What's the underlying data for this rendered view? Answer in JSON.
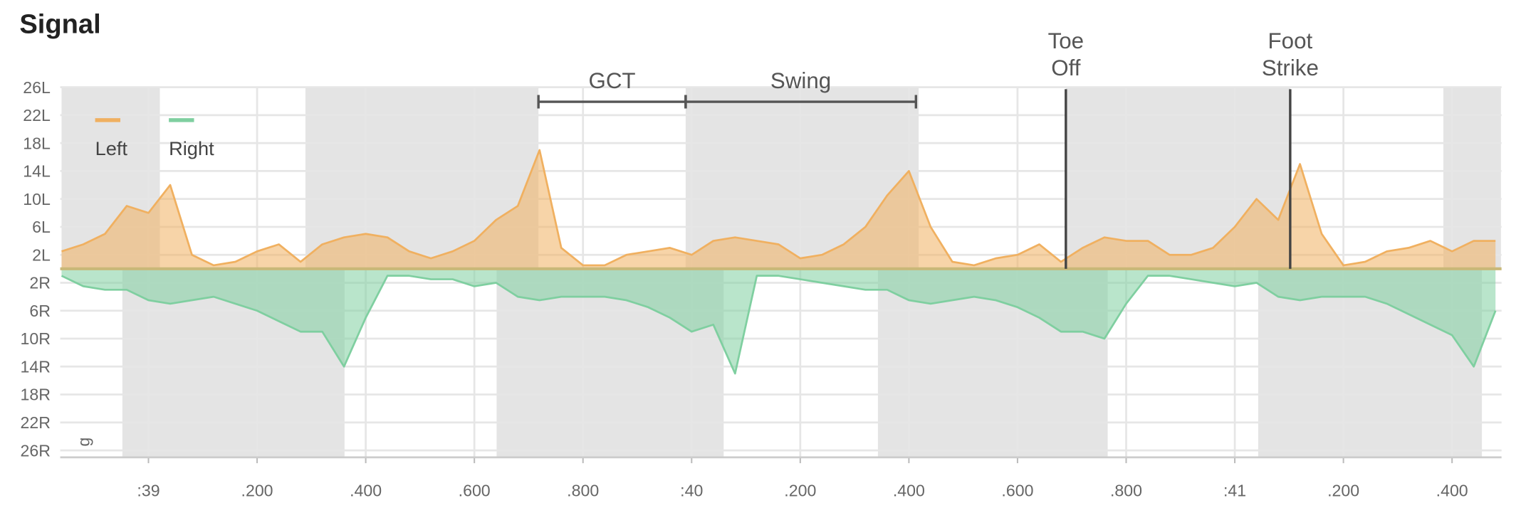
{
  "chart_data": {
    "type": "area",
    "title": "Signal",
    "corner_label": "g",
    "x": [
      38.84,
      38.88,
      38.92,
      38.96,
      39.0,
      39.04,
      39.08,
      39.12,
      39.16,
      39.2,
      39.24,
      39.28,
      39.32,
      39.36,
      39.4,
      39.44,
      39.48,
      39.52,
      39.56,
      39.6,
      39.64,
      39.68,
      39.72,
      39.76,
      39.8,
      39.84,
      39.88,
      39.92,
      39.96,
      40.0,
      40.04,
      40.08,
      40.12,
      40.16,
      40.2,
      40.24,
      40.28,
      40.32,
      40.36,
      40.4,
      40.44,
      40.48,
      40.52,
      40.56,
      40.6,
      40.64,
      40.68,
      40.72,
      40.76,
      40.8,
      40.84,
      40.88,
      40.92,
      40.96,
      41.0,
      41.04,
      41.08,
      41.12,
      41.16,
      41.2,
      41.24,
      41.28,
      41.32,
      41.36,
      41.4,
      41.44,
      41.48
    ],
    "series": [
      {
        "name": "Left",
        "color": "#f0b060",
        "values": [
          2.5,
          3.5,
          5,
          9,
          8,
          12,
          2,
          0.5,
          1,
          2.5,
          3.5,
          1,
          3.5,
          4.5,
          5,
          4.5,
          2.5,
          1.5,
          2.5,
          4,
          7,
          9,
          17,
          3,
          0.5,
          0.5,
          2,
          2.5,
          3,
          2,
          4,
          4.5,
          4,
          3.5,
          1.5,
          2,
          3.5,
          6,
          10.5,
          14,
          6,
          1,
          0.5,
          1.5,
          2,
          3.5,
          1,
          3,
          4.5,
          4,
          4,
          2,
          2,
          3,
          6,
          10,
          7,
          15,
          5,
          0.5,
          1,
          2.5,
          3,
          4,
          2.5,
          4,
          4
        ]
      },
      {
        "name": "Right",
        "color": "#7fcfa0",
        "values": [
          -1,
          -2.5,
          -3,
          -3,
          -4.5,
          -5,
          -4.5,
          -4,
          -5,
          -6,
          -7.5,
          -9,
          -9,
          -14,
          -7,
          -1,
          -1,
          -1.5,
          -1.5,
          -2.5,
          -2,
          -4,
          -4.5,
          -4,
          -4,
          -4,
          -4.5,
          -5.5,
          -7,
          -9,
          -8,
          -15,
          -1,
          -1,
          -1.5,
          -2,
          -2.5,
          -3,
          -3,
          -4.5,
          -5,
          -4.5,
          -4,
          -4.5,
          -5.5,
          -7,
          -9,
          -9,
          -10,
          -5,
          -1,
          -1,
          -1.5,
          -2,
          -2.5,
          -2,
          -4,
          -4.5,
          -4,
          -4,
          -4,
          -5,
          -6.5,
          -8,
          -9.5,
          -14,
          -6
        ]
      }
    ],
    "shaded": {
      "Left": [
        [
          38.84,
          39.021
        ],
        [
          39.289,
          39.718
        ],
        [
          39.989,
          40.418
        ],
        [
          40.689,
          41.102
        ],
        [
          41.384,
          41.49
        ]
      ],
      "Right": [
        [
          38.952,
          39.361
        ],
        [
          39.641,
          40.059
        ],
        [
          40.343,
          40.766
        ],
        [
          41.043,
          41.455
        ]
      ]
    },
    "annotations": [
      {
        "type": "bracket",
        "label": "GCT",
        "x": [
          39.718,
          39.989
        ]
      },
      {
        "type": "bracket",
        "label": "Swing",
        "x": [
          39.989,
          40.413
        ]
      },
      {
        "type": "line",
        "lines": [
          "Toe",
          "Off"
        ],
        "x": 40.689
      },
      {
        "type": "line",
        "lines": [
          "Foot",
          "Strike"
        ],
        "x": 41.102
      }
    ],
    "xlim": [
      38.8375,
      41.4911
    ],
    "xticks": [
      {
        "value": 39,
        "label": ":39"
      },
      {
        "value": 39.2,
        "label": ".200"
      },
      {
        "value": 39.4,
        "label": ".400"
      },
      {
        "value": 39.6,
        "label": ".600"
      },
      {
        "value": 39.8,
        "label": ".800"
      },
      {
        "value": 40,
        "label": ":40"
      },
      {
        "value": 40.2,
        "label": ".200"
      },
      {
        "value": 40.4,
        "label": ".400"
      },
      {
        "value": 40.6,
        "label": ".600"
      },
      {
        "value": 40.8,
        "label": ".800"
      },
      {
        "value": 41,
        "label": ":41"
      },
      {
        "value": 41.2,
        "label": ".200"
      },
      {
        "value": 41.4,
        "label": ".400"
      }
    ],
    "ylim": [
      -27,
      26
    ],
    "yticks": [
      {
        "value": 26,
        "label": "26L"
      },
      {
        "value": 22,
        "label": "22L"
      },
      {
        "value": 18,
        "label": "18L"
      },
      {
        "value": 14,
        "label": "14L"
      },
      {
        "value": 10,
        "label": "10L"
      },
      {
        "value": 6,
        "label": "6L"
      },
      {
        "value": 2,
        "label": "2L"
      },
      {
        "value": -2,
        "label": "2R"
      },
      {
        "value": -6,
        "label": "6R"
      },
      {
        "value": -10,
        "label": "10R"
      },
      {
        "value": -14,
        "label": "14R"
      },
      {
        "value": -18,
        "label": "18R"
      },
      {
        "value": -22,
        "label": "22R"
      },
      {
        "value": -26,
        "label": "26R"
      }
    ],
    "grid": true,
    "legend": "top-left"
  }
}
